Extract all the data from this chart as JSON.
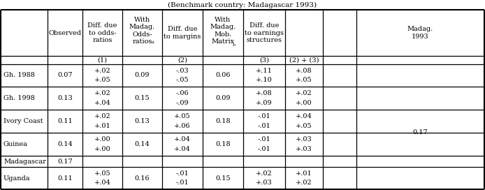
{
  "title": "(Benchmark country: Madagascar 1993)",
  "rows": [
    {
      "label": "Gh. 1988",
      "observed": "0.07",
      "col1_line1": "+.02",
      "col1_line2": "+.05",
      "col2": "0.09",
      "col3_line1": "-.03",
      "col3_line2": "-.05",
      "col4": "0.06",
      "col5_line1": "+.11",
      "col5_line2": "+.10",
      "col6_line1": "+.08",
      "col6_line2": "+.05",
      "madag": ""
    },
    {
      "label": "Gh. 1998",
      "observed": "0.13",
      "col1_line1": "+.02",
      "col1_line2": "+.04",
      "col2": "0.15",
      "col3_line1": "-.06",
      "col3_line2": "-.09",
      "col4": "0.09",
      "col5_line1": "+.08",
      "col5_line2": "+.09",
      "col6_line1": "+.02",
      "col6_line2": "+.00",
      "madag": ""
    },
    {
      "label": "Ivory Coast",
      "observed": "0.11",
      "col1_line1": "+.02",
      "col1_line2": "+.01",
      "col2": "0.13",
      "col3_line1": "+.05",
      "col3_line2": "+.06",
      "col4": "0.18",
      "col5_line1": "-.01",
      "col5_line2": "-.01",
      "col6_line1": "+.04",
      "col6_line2": "+.05",
      "madag": "0.17"
    },
    {
      "label": "Guinea",
      "observed": "0.14",
      "col1_line1": "+.00",
      "col1_line2": "+.00",
      "col2": "0.14",
      "col3_line1": "+.04",
      "col3_line2": "+.04",
      "col4": "0.18",
      "col5_line1": "-.01",
      "col5_line2": "-.01",
      "col6_line1": "+.03",
      "col6_line2": "+.03",
      "madag": ""
    },
    {
      "label": "Madagascar",
      "observed": "0.17",
      "col1_line1": "",
      "col1_line2": "",
      "col2": "",
      "col3_line1": "",
      "col3_line2": "",
      "col4": "",
      "col5_line1": "",
      "col5_line2": "",
      "col6_line1": "",
      "col6_line2": "",
      "madag": ""
    },
    {
      "label": "Uganda",
      "observed": "0.11",
      "col1_line1": "+.05",
      "col1_line2": "+.04",
      "col2": "0.16",
      "col3_line1": "-.01",
      "col3_line2": "-.01",
      "col4": "0.15",
      "col5_line1": "+.02",
      "col5_line2": "+.03",
      "col6_line1": "+.01",
      "col6_line2": "+.02",
      "madag": ""
    }
  ],
  "font_size": 7.0,
  "title_font_size": 7.5
}
